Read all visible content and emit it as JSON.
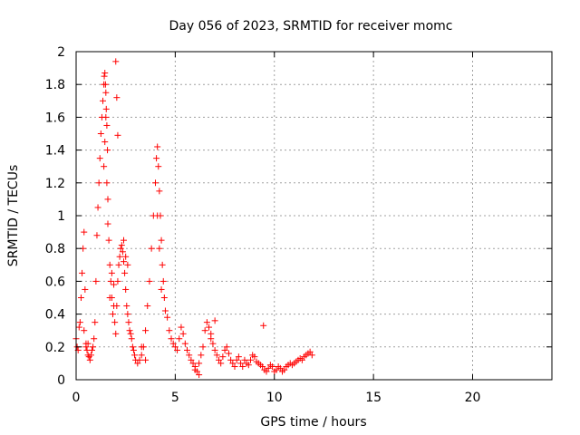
{
  "chart_data": {
    "type": "scatter",
    "title": "Day 056 of 2023, SRMTID for receiver momc",
    "xlabel": "GPS time / hours",
    "ylabel": "SRMTID / TECUs",
    "xlim": [
      0,
      24
    ],
    "ylim": [
      0,
      2
    ],
    "xticks": [
      0,
      5,
      10,
      15,
      20
    ],
    "yticks": [
      0,
      0.2,
      0.4,
      0.6,
      0.8,
      1,
      1.2,
      1.4,
      1.6,
      1.8,
      2
    ],
    "xtick_labels": [
      "0",
      "5",
      "10",
      "15",
      "20"
    ],
    "ytick_labels": [
      "0",
      "0.2",
      "0.4",
      "0.6",
      "0.8",
      "1",
      "1.2",
      "1.4",
      "1.6",
      "1.8",
      "2"
    ],
    "grid": true,
    "marker": "+",
    "color": "#ff0000",
    "series": [
      {
        "name": "SRMTID",
        "x": [
          0.0,
          0.05,
          0.1,
          0.15,
          0.2,
          0.25,
          0.3,
          0.35,
          0.4,
          0.45,
          0.5,
          0.55,
          0.6,
          0.65,
          0.7,
          0.75,
          0.8,
          0.85,
          0.9,
          0.95,
          1.0,
          1.05,
          1.1,
          1.15,
          1.2,
          1.25,
          1.3,
          1.35,
          1.4,
          1.42,
          1.45,
          1.48,
          1.5,
          1.52,
          1.55,
          1.58,
          1.6,
          1.65,
          1.7,
          1.75,
          1.8,
          1.85,
          1.9,
          1.95,
          2.0,
          2.05,
          2.1,
          2.15,
          2.2,
          2.25,
          2.3,
          2.35,
          2.4,
          2.45,
          2.5,
          2.55,
          2.6,
          2.65,
          2.7,
          2.75,
          2.8,
          2.85,
          2.9,
          2.95,
          3.0,
          3.1,
          3.2,
          3.3,
          3.4,
          3.5,
          3.6,
          3.7,
          3.8,
          3.9,
          4.0,
          4.05,
          4.1,
          4.15,
          4.2,
          4.25,
          4.3,
          4.35,
          4.4,
          4.45,
          4.5,
          4.6,
          4.7,
          4.8,
          4.9,
          5.0,
          5.1,
          5.2,
          5.3,
          5.4,
          5.5,
          5.6,
          5.7,
          5.8,
          5.9,
          6.0,
          6.1,
          6.2,
          6.3,
          6.4,
          6.5,
          6.6,
          6.7,
          6.8,
          6.9,
          7.0,
          7.1,
          7.2,
          7.3,
          7.4,
          7.5,
          7.6,
          7.7,
          7.8,
          7.9,
          8.0,
          8.1,
          8.2,
          8.3,
          8.4,
          8.5,
          8.6,
          8.7,
          8.8,
          8.9,
          9.0,
          9.1,
          9.2,
          9.3,
          9.4,
          9.5,
          9.6,
          9.7,
          9.8,
          9.9,
          10.0,
          10.1,
          10.2,
          10.3,
          10.4,
          10.5,
          10.6,
          10.7,
          10.8,
          10.9,
          11.0,
          11.1,
          11.2,
          11.3,
          11.4,
          11.5,
          11.6,
          11.7,
          11.8,
          11.9,
          0.4,
          0.5,
          0.6,
          1.4,
          1.45,
          1.5,
          1.55,
          1.6,
          2.0,
          2.05,
          2.1,
          4.1,
          4.2,
          4.3,
          9.45,
          1.7,
          1.8,
          1.9,
          2.4,
          2.5,
          2.6,
          3.3,
          3.5,
          6.0,
          6.2,
          6.8,
          7.0
        ],
        "y": [
          0.25,
          0.2,
          0.18,
          0.32,
          0.35,
          0.5,
          0.65,
          0.8,
          0.9,
          0.55,
          0.22,
          0.18,
          0.15,
          0.14,
          0.12,
          0.15,
          0.18,
          0.2,
          0.25,
          0.35,
          0.6,
          0.88,
          1.05,
          1.2,
          1.35,
          1.5,
          1.6,
          1.7,
          1.8,
          1.85,
          1.87,
          1.8,
          1.75,
          1.65,
          1.55,
          1.4,
          1.1,
          0.85,
          0.7,
          0.6,
          0.5,
          0.4,
          0.45,
          0.35,
          0.28,
          0.45,
          0.6,
          0.7,
          0.75,
          0.8,
          0.82,
          0.78,
          0.72,
          0.65,
          0.55,
          0.45,
          0.4,
          0.35,
          0.3,
          0.28,
          0.25,
          0.2,
          0.18,
          0.15,
          0.12,
          0.1,
          0.12,
          0.15,
          0.2,
          0.3,
          0.45,
          0.6,
          0.8,
          1.0,
          1.2,
          1.35,
          1.42,
          1.3,
          1.15,
          1.0,
          0.85,
          0.7,
          0.6,
          0.5,
          0.42,
          0.38,
          0.3,
          0.25,
          0.22,
          0.2,
          0.18,
          0.25,
          0.32,
          0.28,
          0.22,
          0.18,
          0.15,
          0.12,
          0.1,
          0.08,
          0.05,
          0.1,
          0.15,
          0.2,
          0.3,
          0.35,
          0.32,
          0.28,
          0.22,
          0.18,
          0.15,
          0.12,
          0.1,
          0.14,
          0.18,
          0.2,
          0.16,
          0.12,
          0.1,
          0.08,
          0.12,
          0.14,
          0.1,
          0.08,
          0.12,
          0.1,
          0.09,
          0.12,
          0.15,
          0.14,
          0.11,
          0.1,
          0.09,
          0.08,
          0.06,
          0.05,
          0.07,
          0.09,
          0.08,
          0.05,
          0.06,
          0.08,
          0.07,
          0.05,
          0.06,
          0.08,
          0.09,
          0.1,
          0.09,
          0.1,
          0.11,
          0.12,
          0.13,
          0.12,
          0.14,
          0.15,
          0.16,
          0.17,
          0.15,
          0.3,
          0.2,
          0.22,
          1.3,
          1.45,
          1.6,
          1.2,
          0.95,
          1.94,
          1.72,
          1.49,
          1.0,
          0.8,
          0.55,
          0.33,
          0.5,
          0.65,
          0.58,
          0.85,
          0.75,
          0.7,
          0.2,
          0.12,
          0.06,
          0.03,
          0.25,
          0.36
        ]
      }
    ]
  }
}
